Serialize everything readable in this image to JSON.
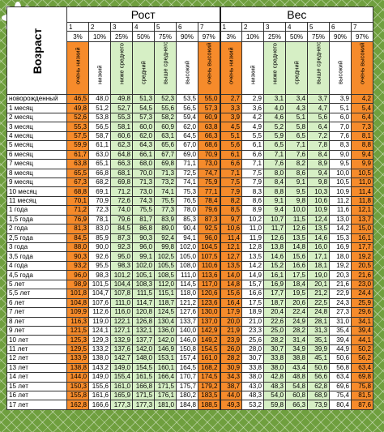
{
  "header": {
    "age": "Возраст",
    "height": "Рост",
    "weight": "Вес"
  },
  "column_numbers": [
    "1",
    "2",
    "3",
    "4",
    "5",
    "6",
    "7",
    "8"
  ],
  "percentiles": [
    "3%",
    "10%",
    "25%",
    "50%",
    "75%",
    "90%",
    "97%"
  ],
  "category_labels": [
    "очень низкий",
    "низкий",
    "ниже среднего",
    "средний",
    "выше среднего",
    "высокий",
    "очень высокий"
  ],
  "colors": {
    "orange": "#f68b2b",
    "green": "#d6efc5",
    "white": "#ffffff"
  },
  "rows": [
    {
      "age": "новорожденный",
      "h": [
        "46,5",
        "48,0",
        "49,8",
        "51,3",
        "52,3",
        "53,5",
        "55,0"
      ],
      "w": [
        "2,7",
        "2,9",
        "3,1",
        "3,4",
        "3,7",
        "3,9",
        "4,2"
      ]
    },
    {
      "age": "1 месяц",
      "h": [
        "49,8",
        "51,2",
        "52,7",
        "54,5",
        "55,6",
        "56,5",
        "57,3"
      ],
      "w": [
        "3,3",
        "3,6",
        "4,0",
        "4,3",
        "4,7",
        "5,1",
        "5,4"
      ]
    },
    {
      "age": "2 месяц",
      "h": [
        "52,6",
        "53,8",
        "55,3",
        "57,3",
        "58,2",
        "59,4",
        "60,9"
      ],
      "w": [
        "3,9",
        "4,2",
        "4,6",
        "5,1",
        "5,6",
        "6,0",
        "6,4"
      ]
    },
    {
      "age": "3 месяц",
      "h": [
        "55,3",
        "56,5",
        "58,1",
        "60,0",
        "60,9",
        "62,0",
        "63,8"
      ],
      "w": [
        "4,5",
        "4,9",
        "5,2",
        "5,8",
        "6,4",
        "7,0",
        "7,3"
      ]
    },
    {
      "age": "4 месяц",
      "h": [
        "57,5",
        "58,7",
        "60,6",
        "62,0",
        "63,1",
        "64,5",
        "66,3"
      ],
      "w": [
        "5,1",
        "5,5",
        "5,9",
        "6,5",
        "7,2",
        "7,6",
        "8,1"
      ]
    },
    {
      "age": "5 месяц",
      "h": [
        "59,9",
        "61,1",
        "62,3",
        "64,3",
        "65,6",
        "67,0",
        "68,6"
      ],
      "w": [
        "5,6",
        "6,1",
        "6,5",
        "7,1",
        "7,8",
        "8,3",
        "8,8"
      ]
    },
    {
      "age": "6 месяц",
      "h": [
        "61,7",
        "63,0",
        "64,8",
        "66,1",
        "67,7",
        "69,0",
        "70,9"
      ],
      "w": [
        "6,1",
        "6,6",
        "7,1",
        "7,6",
        "8,4",
        "9,0",
        "9,4"
      ]
    },
    {
      "age": "7 месяц",
      "h": [
        "63,8",
        "65,1",
        "66,3",
        "68,0",
        "69,8",
        "71,1",
        "73,0"
      ],
      "w": [
        "6,6",
        "7,1",
        "7,6",
        "8,2",
        "8,9",
        "9,5",
        "9,9"
      ]
    },
    {
      "age": "8 месяц",
      "h": [
        "65,5",
        "66,8",
        "68,1",
        "70,0",
        "71,3",
        "72,5",
        "74,7"
      ],
      "w": [
        "7,1",
        "7,5",
        "8,0",
        "8,6",
        "9,4",
        "10,0",
        "10,5"
      ]
    },
    {
      "age": "9 месяц",
      "h": [
        "67,3",
        "68,2",
        "69,8",
        "71,3",
        "73,2",
        "74,1",
        "75,9"
      ],
      "w": [
        "7,5",
        "7,9",
        "8,4",
        "9,1",
        "9,8",
        "10,5",
        "11,0"
      ]
    },
    {
      "age": "10 месяц",
      "h": [
        "68,8",
        "69,1",
        "71,2",
        "73,0",
        "74,1",
        "75,3",
        "77,1"
      ],
      "w": [
        "7,9",
        "8,3",
        "8,8",
        "9,5",
        "10,3",
        "10,9",
        "11,4"
      ]
    },
    {
      "age": "11 месяц",
      "h": [
        "70,1",
        "70,9",
        "72,6",
        "74,3",
        "75,5",
        "76,5",
        "78,4"
      ],
      "w": [
        "8,2",
        "8,6",
        "9,1",
        "9,8",
        "10,6",
        "11,2",
        "11,8"
      ]
    },
    {
      "age": "1 года",
      "h": [
        "71,2",
        "72,3",
        "74,0",
        "75,5",
        "77,3",
        "78,0",
        "79,6"
      ],
      "w": [
        "8,5",
        "8,9",
        "9,4",
        "10,0",
        "10,9",
        "11,6",
        "12,1"
      ]
    },
    {
      "age": "1,5 года",
      "h": [
        "76,9",
        "78,1",
        "79,6",
        "81,7",
        "83,9",
        "85,3",
        "87,3"
      ],
      "w": [
        "9,7",
        "10,2",
        "10,7",
        "11,5",
        "12,4",
        "13,0",
        "13,7"
      ]
    },
    {
      "age": "2 года",
      "h": [
        "81,3",
        "83,0",
        "84,5",
        "86,8",
        "89,0",
        "90,4",
        "92,5"
      ],
      "w": [
        "10,6",
        "11,0",
        "11,7",
        "12,6",
        "13,5",
        "14,2",
        "15,0"
      ]
    },
    {
      "age": "2,5 года",
      "h": [
        "84,5",
        "85,9",
        "87,3",
        "90,3",
        "92,4",
        "94,1",
        "96,0"
      ],
      "w": [
        "11,4",
        "11,9",
        "12,6",
        "13,5",
        "14,6",
        "15,3",
        "16,1"
      ]
    },
    {
      "age": "3 года",
      "h": [
        "88,0",
        "90,0",
        "92,3",
        "96,0",
        "99,8",
        "102,0",
        "104,5"
      ],
      "w": [
        "12,1",
        "12,8",
        "13,8",
        "14,8",
        "16,0",
        "16,9",
        "17,7"
      ]
    },
    {
      "age": "3,5 года",
      "h": [
        "90,3",
        "92,6",
        "95,0",
        "99,1",
        "102,5",
        "105,0",
        "107,5"
      ],
      "w": [
        "12,7",
        "13,5",
        "14,6",
        "15,6",
        "17,1",
        "18,0",
        "19,2"
      ]
    },
    {
      "age": "4 года",
      "h": [
        "93,2",
        "95,5",
        "98,3",
        "102,0",
        "105,5",
        "108,0",
        "110,6"
      ],
      "w": [
        "13,5",
        "14,2",
        "15,2",
        "16,6",
        "18,1",
        "19,2",
        "20,5"
      ]
    },
    {
      "age": "4,5 года",
      "h": [
        "96,0",
        "98,3",
        "101,2",
        "105,1",
        "108,5",
        "111,0",
        "113,6"
      ],
      "w": [
        "14,0",
        "14,9",
        "16,1",
        "17,5",
        "19,0",
        "20,3",
        "21,6"
      ]
    },
    {
      "age": "5 лет",
      "h": [
        "98,9",
        "101,5",
        "104,4",
        "108,3",
        "112,0",
        "114,5",
        "117,0"
      ],
      "w": [
        "14,8",
        "15,7",
        "16,9",
        "18,4",
        "20,1",
        "21,6",
        "23,0"
      ]
    },
    {
      "age": "5,5 лет",
      "h": [
        "101,8",
        "104,7",
        "107,8",
        "111,5",
        "115,1",
        "118,0",
        "120,6"
      ],
      "w": [
        "15,6",
        "16,6",
        "17,7",
        "19,5",
        "21,2",
        "22,9",
        "24,4"
      ]
    },
    {
      "age": "6 лет",
      "h": [
        "104,8",
        "107,6",
        "111,0",
        "114,7",
        "118,7",
        "121,2",
        "123,6"
      ],
      "w": [
        "16,4",
        "17,5",
        "18,7",
        "20,6",
        "22,5",
        "24,3",
        "25,9"
      ]
    },
    {
      "age": "7 лет",
      "h": [
        "109,9",
        "112,6",
        "116,0",
        "120,8",
        "124,5",
        "127,6",
        "130,0"
      ],
      "w": [
        "17,9",
        "18,9",
        "20,4",
        "22,4",
        "24,8",
        "27,3",
        "29,6"
      ]
    },
    {
      "age": "8 лет",
      "h": [
        "116,3",
        "119,0",
        "122,1",
        "126,8",
        "130,4",
        "133,7",
        "137,0"
      ],
      "w": [
        "20,0",
        "21,0",
        "22,6",
        "24,9",
        "28,1",
        "31,0",
        "34,1"
      ]
    },
    {
      "age": "9 лет",
      "h": [
        "121,5",
        "124,1",
        "127,1",
        "132,1",
        "136,0",
        "140,0",
        "142,9"
      ],
      "w": [
        "21,9",
        "23,3",
        "25,0",
        "28,2",
        "31,3",
        "35,4",
        "39,4"
      ]
    },
    {
      "age": "10 лет",
      "h": [
        "125,3",
        "129,3",
        "132,9",
        "137,7",
        "142,0",
        "146,0",
        "149,2"
      ],
      "w": [
        "23,9",
        "25,6",
        "28,2",
        "31,4",
        "35,1",
        "39,4",
        "44,1"
      ]
    },
    {
      "age": "11 лет",
      "h": [
        "129,5",
        "133,2",
        "137,6",
        "142,0",
        "146,9",
        "150,8",
        "154,5"
      ],
      "w": [
        "26,0",
        "28,0",
        "30,7",
        "34,9",
        "39,9",
        "44,9",
        "50,2"
      ]
    },
    {
      "age": "12 лет",
      "h": [
        "133,9",
        "138,0",
        "142,7",
        "148,0",
        "153,1",
        "157,4",
        "161,0"
      ],
      "w": [
        "28,2",
        "30,7",
        "33,8",
        "38,8",
        "45,1",
        "50,6",
        "56,2"
      ]
    },
    {
      "age": "13 лет",
      "h": [
        "138,8",
        "143,2",
        "149,0",
        "154,5",
        "160,1",
        "164,5",
        "168,2"
      ],
      "w": [
        "30,9",
        "33,8",
        "38,0",
        "43,4",
        "50,6",
        "56,8",
        "63,4"
      ]
    },
    {
      "age": "14 лет",
      "h": [
        "144,0",
        "149,0",
        "155,4",
        "161,5",
        "166,4",
        "170,7",
        "174,5"
      ],
      "w": [
        "34,3",
        "38,0",
        "42,8",
        "48,8",
        "56,6",
        "63,4",
        "69,8"
      ]
    },
    {
      "age": "15 лет",
      "h": [
        "150,3",
        "155,6",
        "161,0",
        "166,8",
        "171,5",
        "175,7",
        "179,2"
      ],
      "w": [
        "38,7",
        "43,0",
        "48,3",
        "54,8",
        "62,8",
        "69,6",
        "75,8"
      ]
    },
    {
      "age": "16 лет",
      "h": [
        "155,8",
        "161,6",
        "165,9",
        "171,5",
        "176,1",
        "180,2",
        "183,5"
      ],
      "w": [
        "44,0",
        "48,3",
        "54,0",
        "60,8",
        "68,9",
        "75,4",
        "81,5"
      ]
    },
    {
      "age": "17 лет",
      "h": [
        "162,8",
        "166,6",
        "177,3",
        "177,3",
        "181,0",
        "184,8",
        "188,5"
      ],
      "w": [
        "49,3",
        "53,2",
        "59,8",
        "66,3",
        "73,9",
        "80,4",
        "87,6"
      ]
    }
  ]
}
